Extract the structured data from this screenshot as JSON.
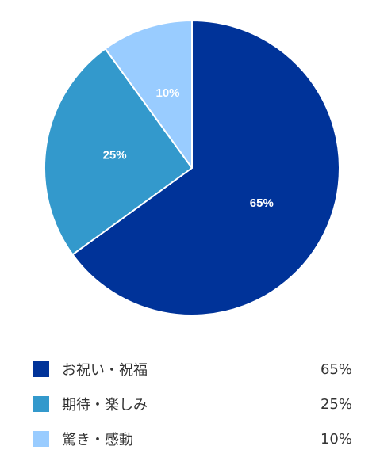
{
  "chart_data": {
    "type": "pie",
    "categories": [
      "お祝い・祝福",
      "期待・楽しみ",
      "驚き・感動"
    ],
    "values": [
      65,
      25,
      10
    ],
    "labels": [
      "65%",
      "25%",
      "10%"
    ],
    "colors": [
      "#003399",
      "#3399cc",
      "#99ccff"
    ],
    "legend": "bottom"
  }
}
